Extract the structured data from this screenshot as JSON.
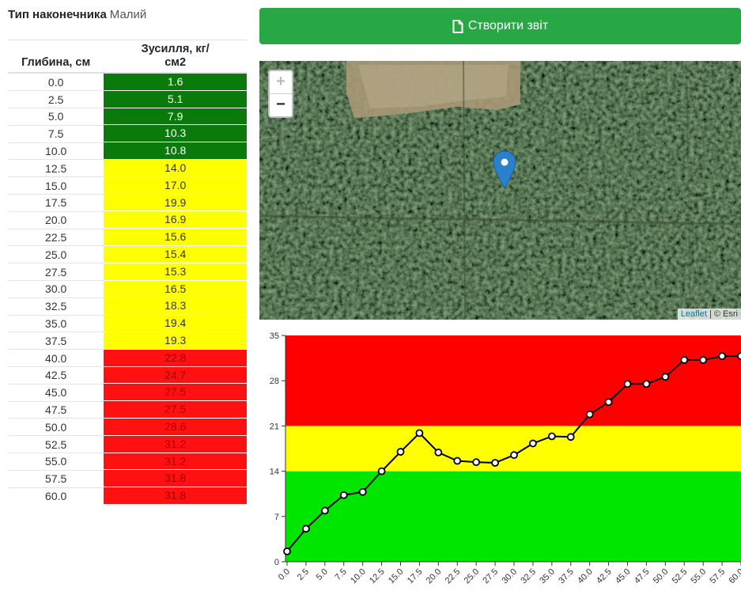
{
  "tip": {
    "label": "Тип наконечника",
    "value": "Малий"
  },
  "table": {
    "header_depth": "Глибина, см",
    "header_force": "Зусилля, кг/см2",
    "rows": [
      {
        "depth": "0.0",
        "force": "1.6",
        "level": "green"
      },
      {
        "depth": "2.5",
        "force": "5.1",
        "level": "green"
      },
      {
        "depth": "5.0",
        "force": "7.9",
        "level": "green"
      },
      {
        "depth": "7.5",
        "force": "10.3",
        "level": "green"
      },
      {
        "depth": "10.0",
        "force": "10.8",
        "level": "green"
      },
      {
        "depth": "12.5",
        "force": "14.0",
        "level": "yellow"
      },
      {
        "depth": "15.0",
        "force": "17.0",
        "level": "yellow"
      },
      {
        "depth": "17.5",
        "force": "19.9",
        "level": "yellow"
      },
      {
        "depth": "20.0",
        "force": "16.9",
        "level": "yellow"
      },
      {
        "depth": "22.5",
        "force": "15.6",
        "level": "yellow"
      },
      {
        "depth": "25.0",
        "force": "15.4",
        "level": "yellow"
      },
      {
        "depth": "27.5",
        "force": "15.3",
        "level": "yellow"
      },
      {
        "depth": "30.0",
        "force": "16.5",
        "level": "yellow"
      },
      {
        "depth": "32.5",
        "force": "18.3",
        "level": "yellow"
      },
      {
        "depth": "35.0",
        "force": "19.4",
        "level": "yellow"
      },
      {
        "depth": "37.5",
        "force": "19.3",
        "level": "yellow"
      },
      {
        "depth": "40.0",
        "force": "22.8",
        "level": "red"
      },
      {
        "depth": "42.5",
        "force": "24.7",
        "level": "red"
      },
      {
        "depth": "45.0",
        "force": "27.5",
        "level": "red"
      },
      {
        "depth": "47.5",
        "force": "27.5",
        "level": "red"
      },
      {
        "depth": "50.0",
        "force": "28.6",
        "level": "red"
      },
      {
        "depth": "52.5",
        "force": "31.2",
        "level": "red"
      },
      {
        "depth": "55.0",
        "force": "31.2",
        "level": "red"
      },
      {
        "depth": "57.5",
        "force": "31.8",
        "level": "red"
      },
      {
        "depth": "60.0",
        "force": "31.8",
        "level": "red"
      }
    ]
  },
  "report_button": {
    "label": "Створити звіт",
    "icon": "file-icon"
  },
  "map": {
    "zoom_in": "+",
    "zoom_out": "−",
    "attribution_link": "Leaflet",
    "attribution_rest": " | © Esri"
  },
  "colors": {
    "green": "#00e600",
    "yellow": "#ffff00",
    "red": "#ff0000",
    "button": "#28a745"
  },
  "chart_data": {
    "type": "line",
    "x": [
      "0.0",
      "2.5",
      "5.0",
      "7.5",
      "10.0",
      "12.5",
      "15.0",
      "17.5",
      "20.0",
      "22.5",
      "25.0",
      "27.5",
      "30.0",
      "32.5",
      "35.0",
      "37.5",
      "40.0",
      "42.5",
      "45.0",
      "47.5",
      "50.0",
      "52.5",
      "55.0",
      "57.5",
      "60.0"
    ],
    "values": [
      1.6,
      5.1,
      7.9,
      10.3,
      10.8,
      14.0,
      17.0,
      19.9,
      16.9,
      15.6,
      15.4,
      15.3,
      16.5,
      18.3,
      19.4,
      19.3,
      22.8,
      24.7,
      27.5,
      27.5,
      28.6,
      31.2,
      31.2,
      31.8,
      31.8
    ],
    "yticks": [
      0,
      7,
      14,
      21,
      28,
      35
    ],
    "ylim": [
      0,
      35
    ],
    "bands": [
      {
        "from": 0,
        "to": 14,
        "color": "#00e600"
      },
      {
        "from": 14,
        "to": 21,
        "color": "#ffff00"
      },
      {
        "from": 21,
        "to": 35,
        "color": "#ff0000"
      }
    ],
    "title": "",
    "xlabel": "",
    "ylabel": ""
  }
}
